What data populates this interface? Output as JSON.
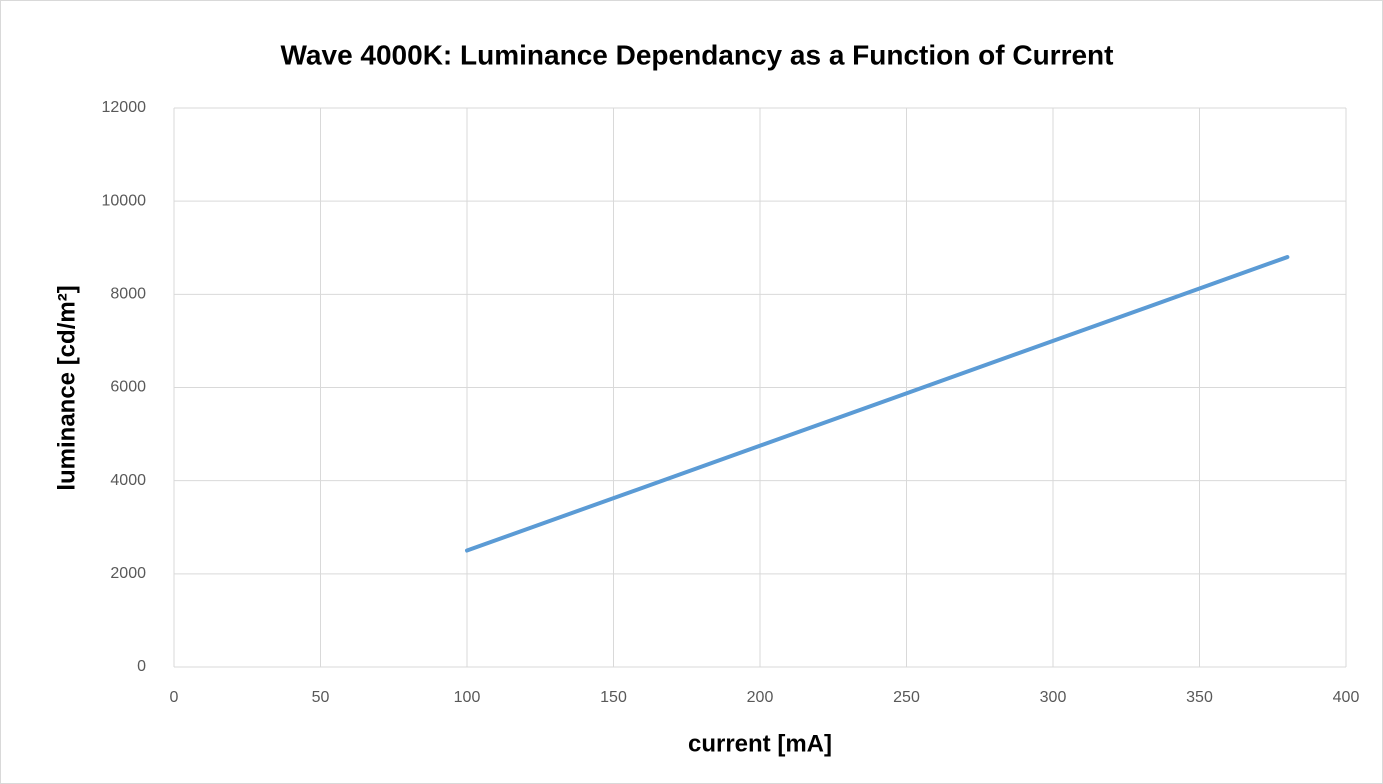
{
  "chart_data": {
    "type": "line",
    "title": "Wave 4000K: Luminance Dependancy as a Function of Current",
    "x_label": "current [mA]",
    "y_label": "luminance [cd/m²]",
    "x": [
      100,
      380
    ],
    "series": [
      {
        "name": "luminance",
        "color": "#5b9bd5",
        "values": [
          2500,
          8800
        ]
      }
    ],
    "xlim": [
      0,
      400
    ],
    "xticks": [
      0,
      50,
      100,
      150,
      200,
      250,
      300,
      350,
      400
    ],
    "ylim": [
      0,
      12000
    ],
    "yticks": [
      0,
      2000,
      4000,
      6000,
      8000,
      10000,
      12000
    ],
    "grid": true
  }
}
